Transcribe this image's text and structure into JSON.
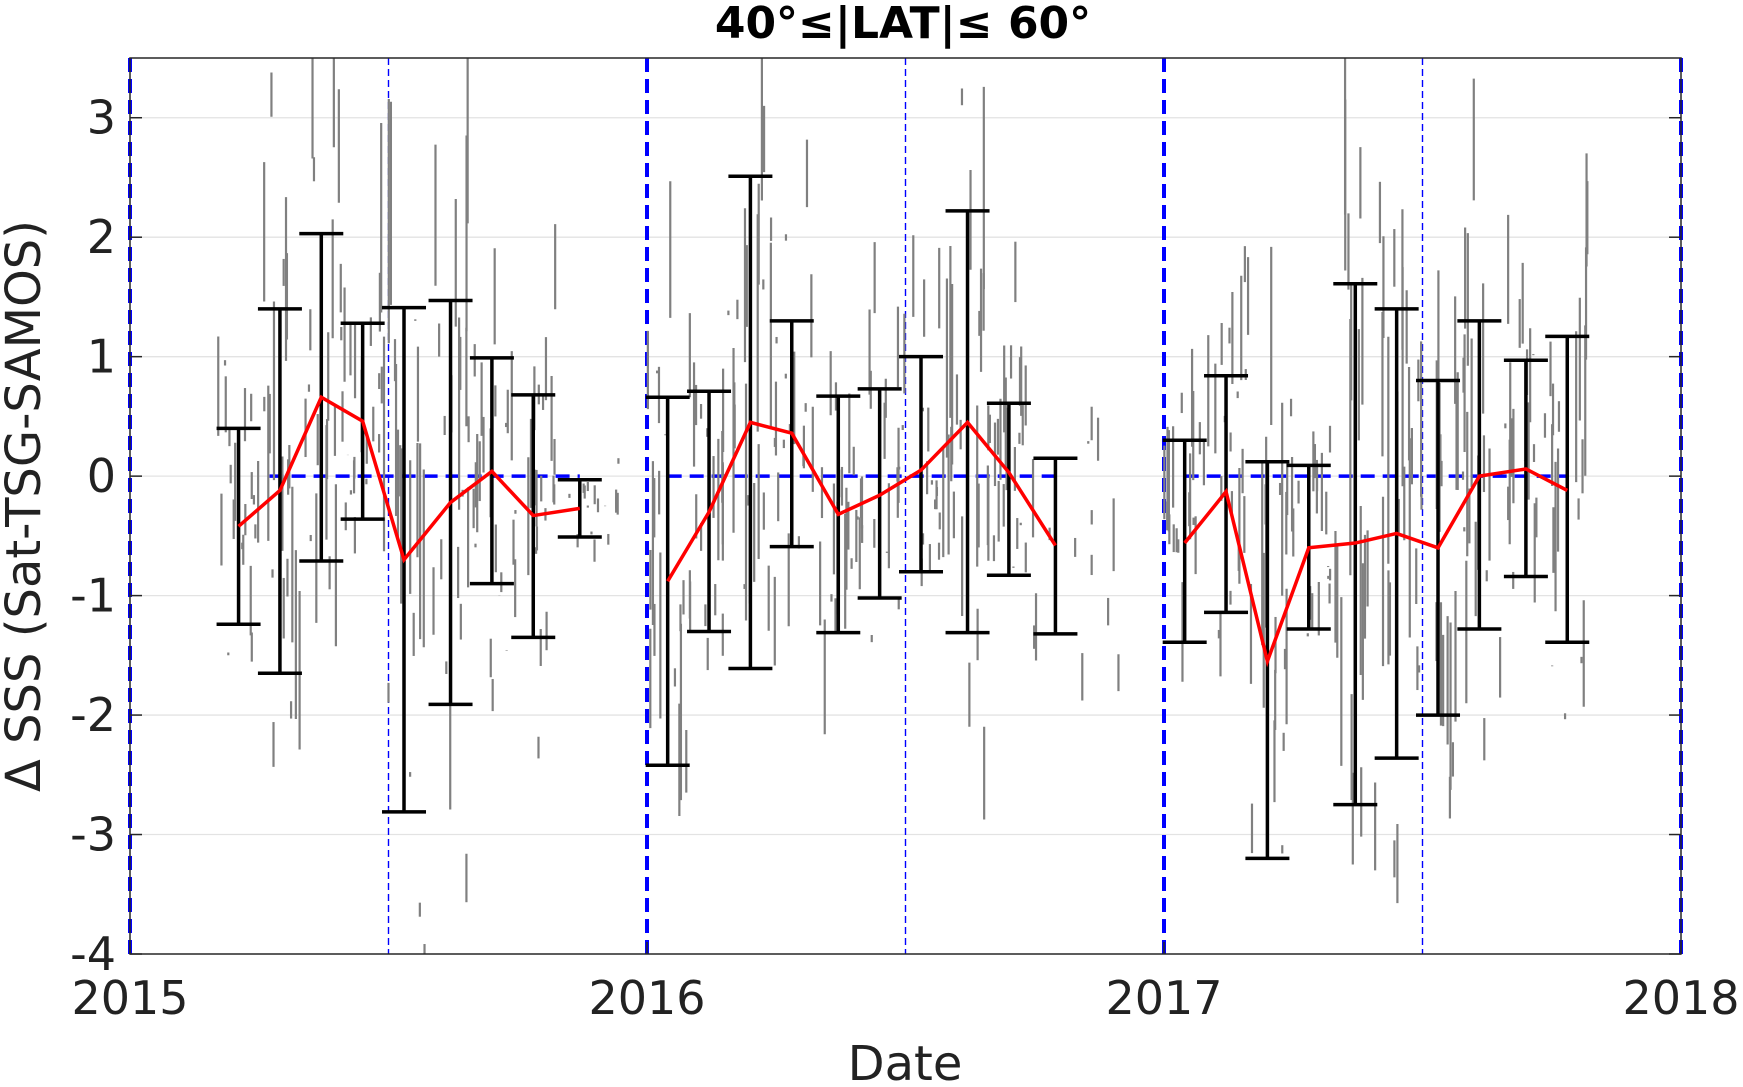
{
  "chart_data": {
    "type": "scatter",
    "title": "40°≤|LAT|≤ 60°",
    "xlabel": "Date",
    "ylabel": "Δ SSS (Sat-TSG-SAMOS)",
    "xlim": [
      2015,
      2018
    ],
    "ylim": [
      -4,
      3.5
    ],
    "x_ticks": [
      "2015",
      "2016",
      "2017",
      "2018"
    ],
    "y_ticks": [
      "-4",
      "-3",
      "-2",
      "-1",
      "0",
      "1",
      "2",
      "3"
    ],
    "grid": "horizontal",
    "zero_line": 0,
    "year_boundaries": [
      2015,
      2016,
      2017,
      2018
    ],
    "mid_year_lines": [
      2015.5,
      2016.5,
      2017.5
    ],
    "colors": {
      "scatter": "#808080",
      "mean_line": "#ff0000",
      "error_bars": "#000000",
      "reference_lines": "#0000ff"
    },
    "series": [
      {
        "type": "error_bar",
        "x": [
          2015.21,
          2015.29,
          2015.37,
          2015.45,
          2015.53,
          2015.62,
          2015.7,
          2015.78,
          2015.87,
          2016.04,
          2016.12,
          2016.2,
          2016.28,
          2016.37,
          2016.45,
          2016.53,
          2016.62,
          2016.7,
          2016.79,
          2017.04,
          2017.12,
          2017.2,
          2017.28,
          2017.37,
          2017.45,
          2017.53,
          2017.61,
          2017.7,
          2017.78
        ],
        "mean": [
          -0.42,
          -0.12,
          0.66,
          0.46,
          -0.7,
          -0.22,
          0.04,
          -0.33,
          -0.27,
          -0.88,
          -0.3,
          0.45,
          0.36,
          -0.32,
          -0.16,
          0.05,
          0.45,
          0.03,
          -0.58,
          -0.56,
          -0.13,
          -1.55,
          -0.6,
          -0.56,
          -0.48,
          -0.6,
          0.0,
          0.06,
          -0.12
        ],
        "lower": [
          -1.24,
          -1.65,
          -0.71,
          -0.36,
          -2.81,
          -1.91,
          -0.9,
          -1.35,
          -0.51,
          -2.42,
          -1.3,
          -1.61,
          -0.59,
          -1.31,
          -1.02,
          -0.8,
          -1.31,
          -0.83,
          -1.32,
          -1.39,
          -1.14,
          -3.2,
          -1.28,
          -2.75,
          -2.36,
          -2.0,
          -1.28,
          -0.84,
          -1.39
        ],
        "upper": [
          0.4,
          1.4,
          2.03,
          1.28,
          1.41,
          1.47,
          0.99,
          0.68,
          -0.03,
          0.66,
          0.71,
          2.51,
          1.3,
          0.67,
          0.73,
          1.0,
          2.22,
          0.61,
          0.15,
          0.3,
          0.84,
          0.12,
          0.09,
          1.61,
          1.4,
          0.8,
          1.3,
          0.97,
          1.17
        ]
      }
    ]
  }
}
